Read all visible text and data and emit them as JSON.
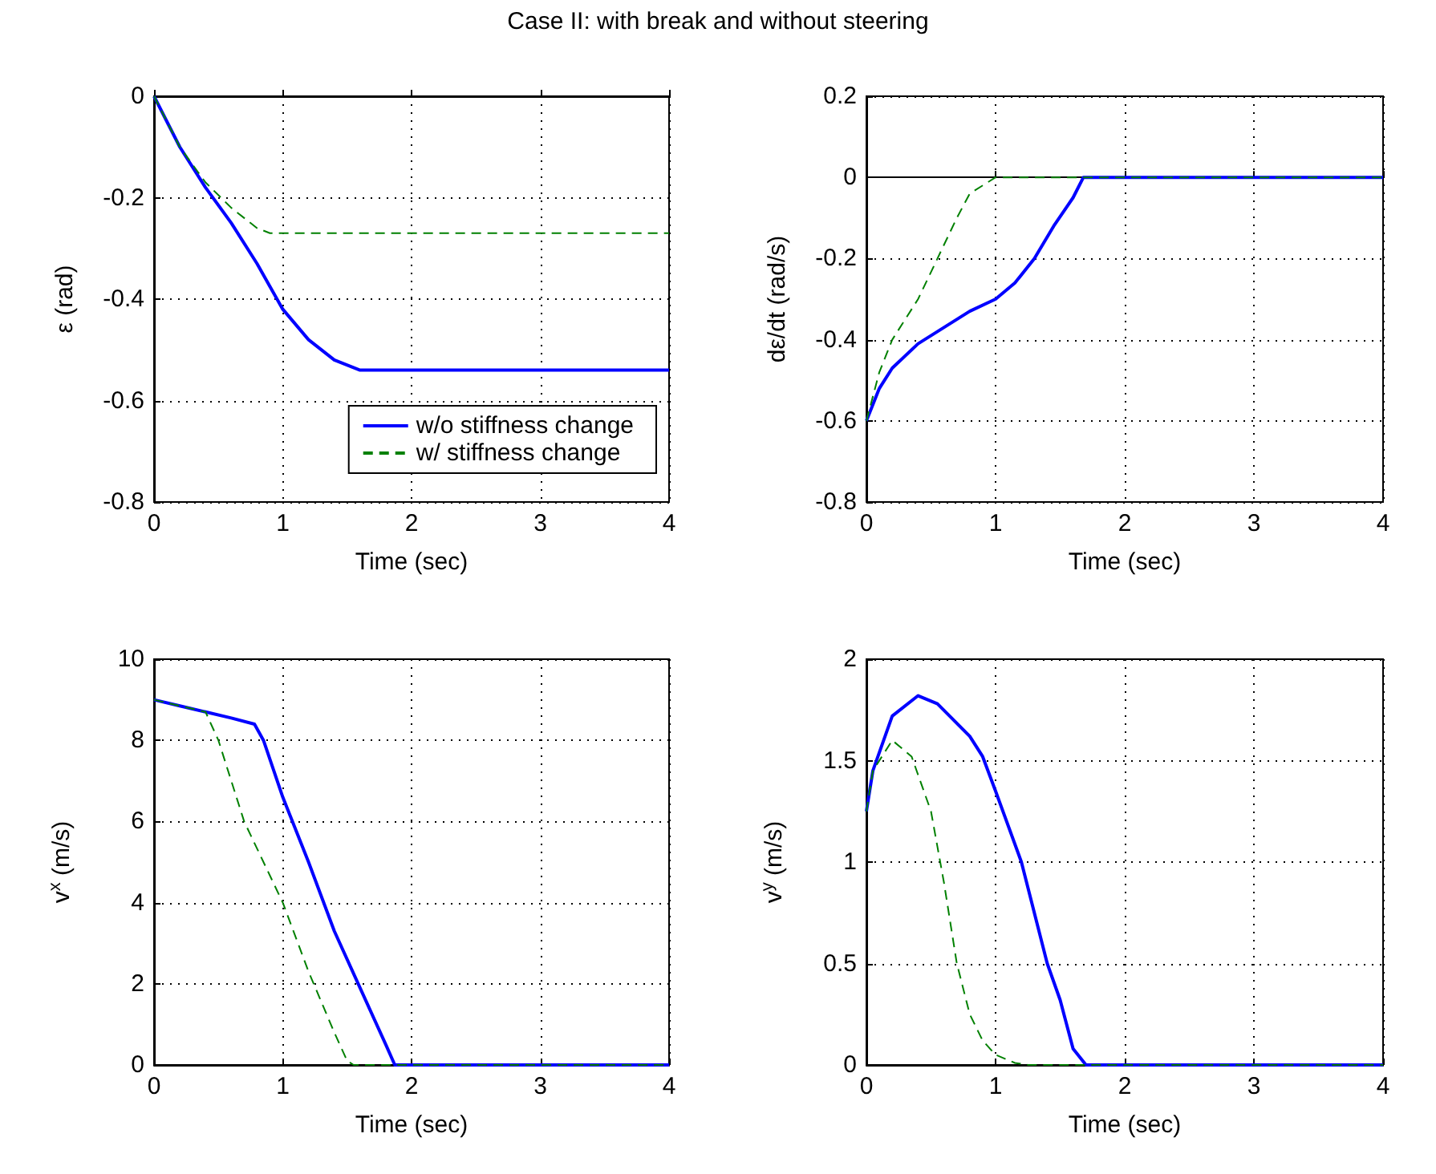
{
  "chart_data": [
    {
      "type": "line",
      "title": "Case II: with break and without steering",
      "xlabel": "Time (sec)",
      "ylabel": "ε (rad)",
      "xlim": [
        0,
        4
      ],
      "ylim": [
        -0.8,
        0
      ],
      "xticks": [
        0,
        1,
        2,
        3,
        4
      ],
      "yticks": [
        -0.8,
        -0.6,
        -0.4,
        -0.2,
        0
      ],
      "grid": true,
      "legend": "bottom right",
      "series": [
        {
          "name": "w/o stiffness change",
          "color": "#0000ff",
          "line_style": "solid",
          "x": [
            0,
            0.2,
            0.4,
            0.6,
            0.8,
            1.0,
            1.2,
            1.4,
            1.6,
            4
          ],
          "values": [
            0,
            -0.1,
            -0.18,
            -0.25,
            -0.33,
            -0.42,
            -0.48,
            -0.52,
            -0.54,
            -0.54
          ]
        },
        {
          "name": "w/ stiffness change",
          "color": "#008000",
          "line_style": "dashed",
          "x": [
            0,
            0.2,
            0.4,
            0.6,
            0.8,
            0.9,
            4
          ],
          "values": [
            0,
            -0.1,
            -0.17,
            -0.22,
            -0.26,
            -0.27,
            -0.27
          ]
        }
      ]
    },
    {
      "type": "line",
      "xlabel": "Time (sec)",
      "ylabel": "dε/dt (rad/s)",
      "xlim": [
        0,
        4
      ],
      "ylim": [
        -0.8,
        0.2
      ],
      "xticks": [
        0,
        1,
        2,
        3,
        4
      ],
      "yticks": [
        -0.8,
        -0.6,
        -0.4,
        -0.2,
        0,
        0.2
      ],
      "grid": true,
      "series": [
        {
          "color": "#0000ff",
          "line_style": "solid",
          "x": [
            0,
            0.1,
            0.2,
            0.4,
            0.6,
            0.8,
            1.0,
            1.15,
            1.3,
            1.45,
            1.6,
            1.68,
            4
          ],
          "values": [
            -0.6,
            -0.52,
            -0.47,
            -0.41,
            -0.37,
            -0.33,
            -0.3,
            -0.26,
            -0.2,
            -0.12,
            -0.05,
            0,
            0
          ]
        },
        {
          "color": "#008000",
          "line_style": "dashed",
          "x": [
            0,
            0.1,
            0.2,
            0.4,
            0.55,
            0.7,
            0.8,
            0.95,
            1.0,
            4
          ],
          "values": [
            -0.6,
            -0.48,
            -0.4,
            -0.3,
            -0.2,
            -0.1,
            -0.04,
            -0.01,
            0,
            0
          ]
        }
      ]
    },
    {
      "type": "line",
      "xlabel": "Time (sec)",
      "ylabel": "v$^{x}$ (m/s)",
      "xlim": [
        0,
        4
      ],
      "ylim": [
        0,
        10
      ],
      "xticks": [
        0,
        1,
        2,
        3,
        4
      ],
      "yticks": [
        0,
        2,
        4,
        6,
        8,
        10
      ],
      "grid": true,
      "series": [
        {
          "color": "#0000ff",
          "line_style": "solid",
          "x": [
            0,
            0.2,
            0.4,
            0.6,
            0.78,
            0.85,
            1.0,
            1.2,
            1.4,
            1.6,
            1.8,
            1.87,
            4
          ],
          "values": [
            9,
            8.85,
            8.7,
            8.55,
            8.4,
            8,
            6.6,
            5,
            3.3,
            1.9,
            0.5,
            0,
            0
          ]
        },
        {
          "color": "#008000",
          "line_style": "dashed",
          "x": [
            0,
            0.2,
            0.4,
            0.5,
            0.7,
            1.0,
            1.2,
            1.4,
            1.5,
            1.55,
            4
          ],
          "values": [
            9,
            8.85,
            8.7,
            8,
            6,
            4,
            2.3,
            0.8,
            0.1,
            0,
            0
          ]
        }
      ]
    },
    {
      "type": "line",
      "xlabel": "Time (sec)",
      "ylabel": "v$^{y}$ (m/s)",
      "xlim": [
        0,
        4
      ],
      "ylim": [
        0,
        2
      ],
      "xticks": [
        0,
        1,
        2,
        3,
        4
      ],
      "yticks": [
        0,
        0.5,
        1,
        1.5,
        2
      ],
      "grid": true,
      "series": [
        {
          "color": "#0000ff",
          "line_style": "solid",
          "x": [
            0,
            0.05,
            0.2,
            0.4,
            0.55,
            0.8,
            0.9,
            1.0,
            1.2,
            1.4,
            1.5,
            1.6,
            1.7,
            4
          ],
          "values": [
            1.25,
            1.45,
            1.72,
            1.82,
            1.78,
            1.62,
            1.52,
            1.35,
            1.0,
            0.5,
            0.32,
            0.08,
            0,
            0
          ]
        },
        {
          "color": "#008000",
          "line_style": "dashed",
          "x": [
            0,
            0.05,
            0.2,
            0.35,
            0.5,
            0.6,
            0.7,
            0.8,
            0.9,
            1.0,
            1.15,
            1.25,
            4
          ],
          "values": [
            1.25,
            1.45,
            1.6,
            1.52,
            1.25,
            0.9,
            0.5,
            0.25,
            0.12,
            0.05,
            0.01,
            0,
            0
          ]
        }
      ]
    }
  ]
}
